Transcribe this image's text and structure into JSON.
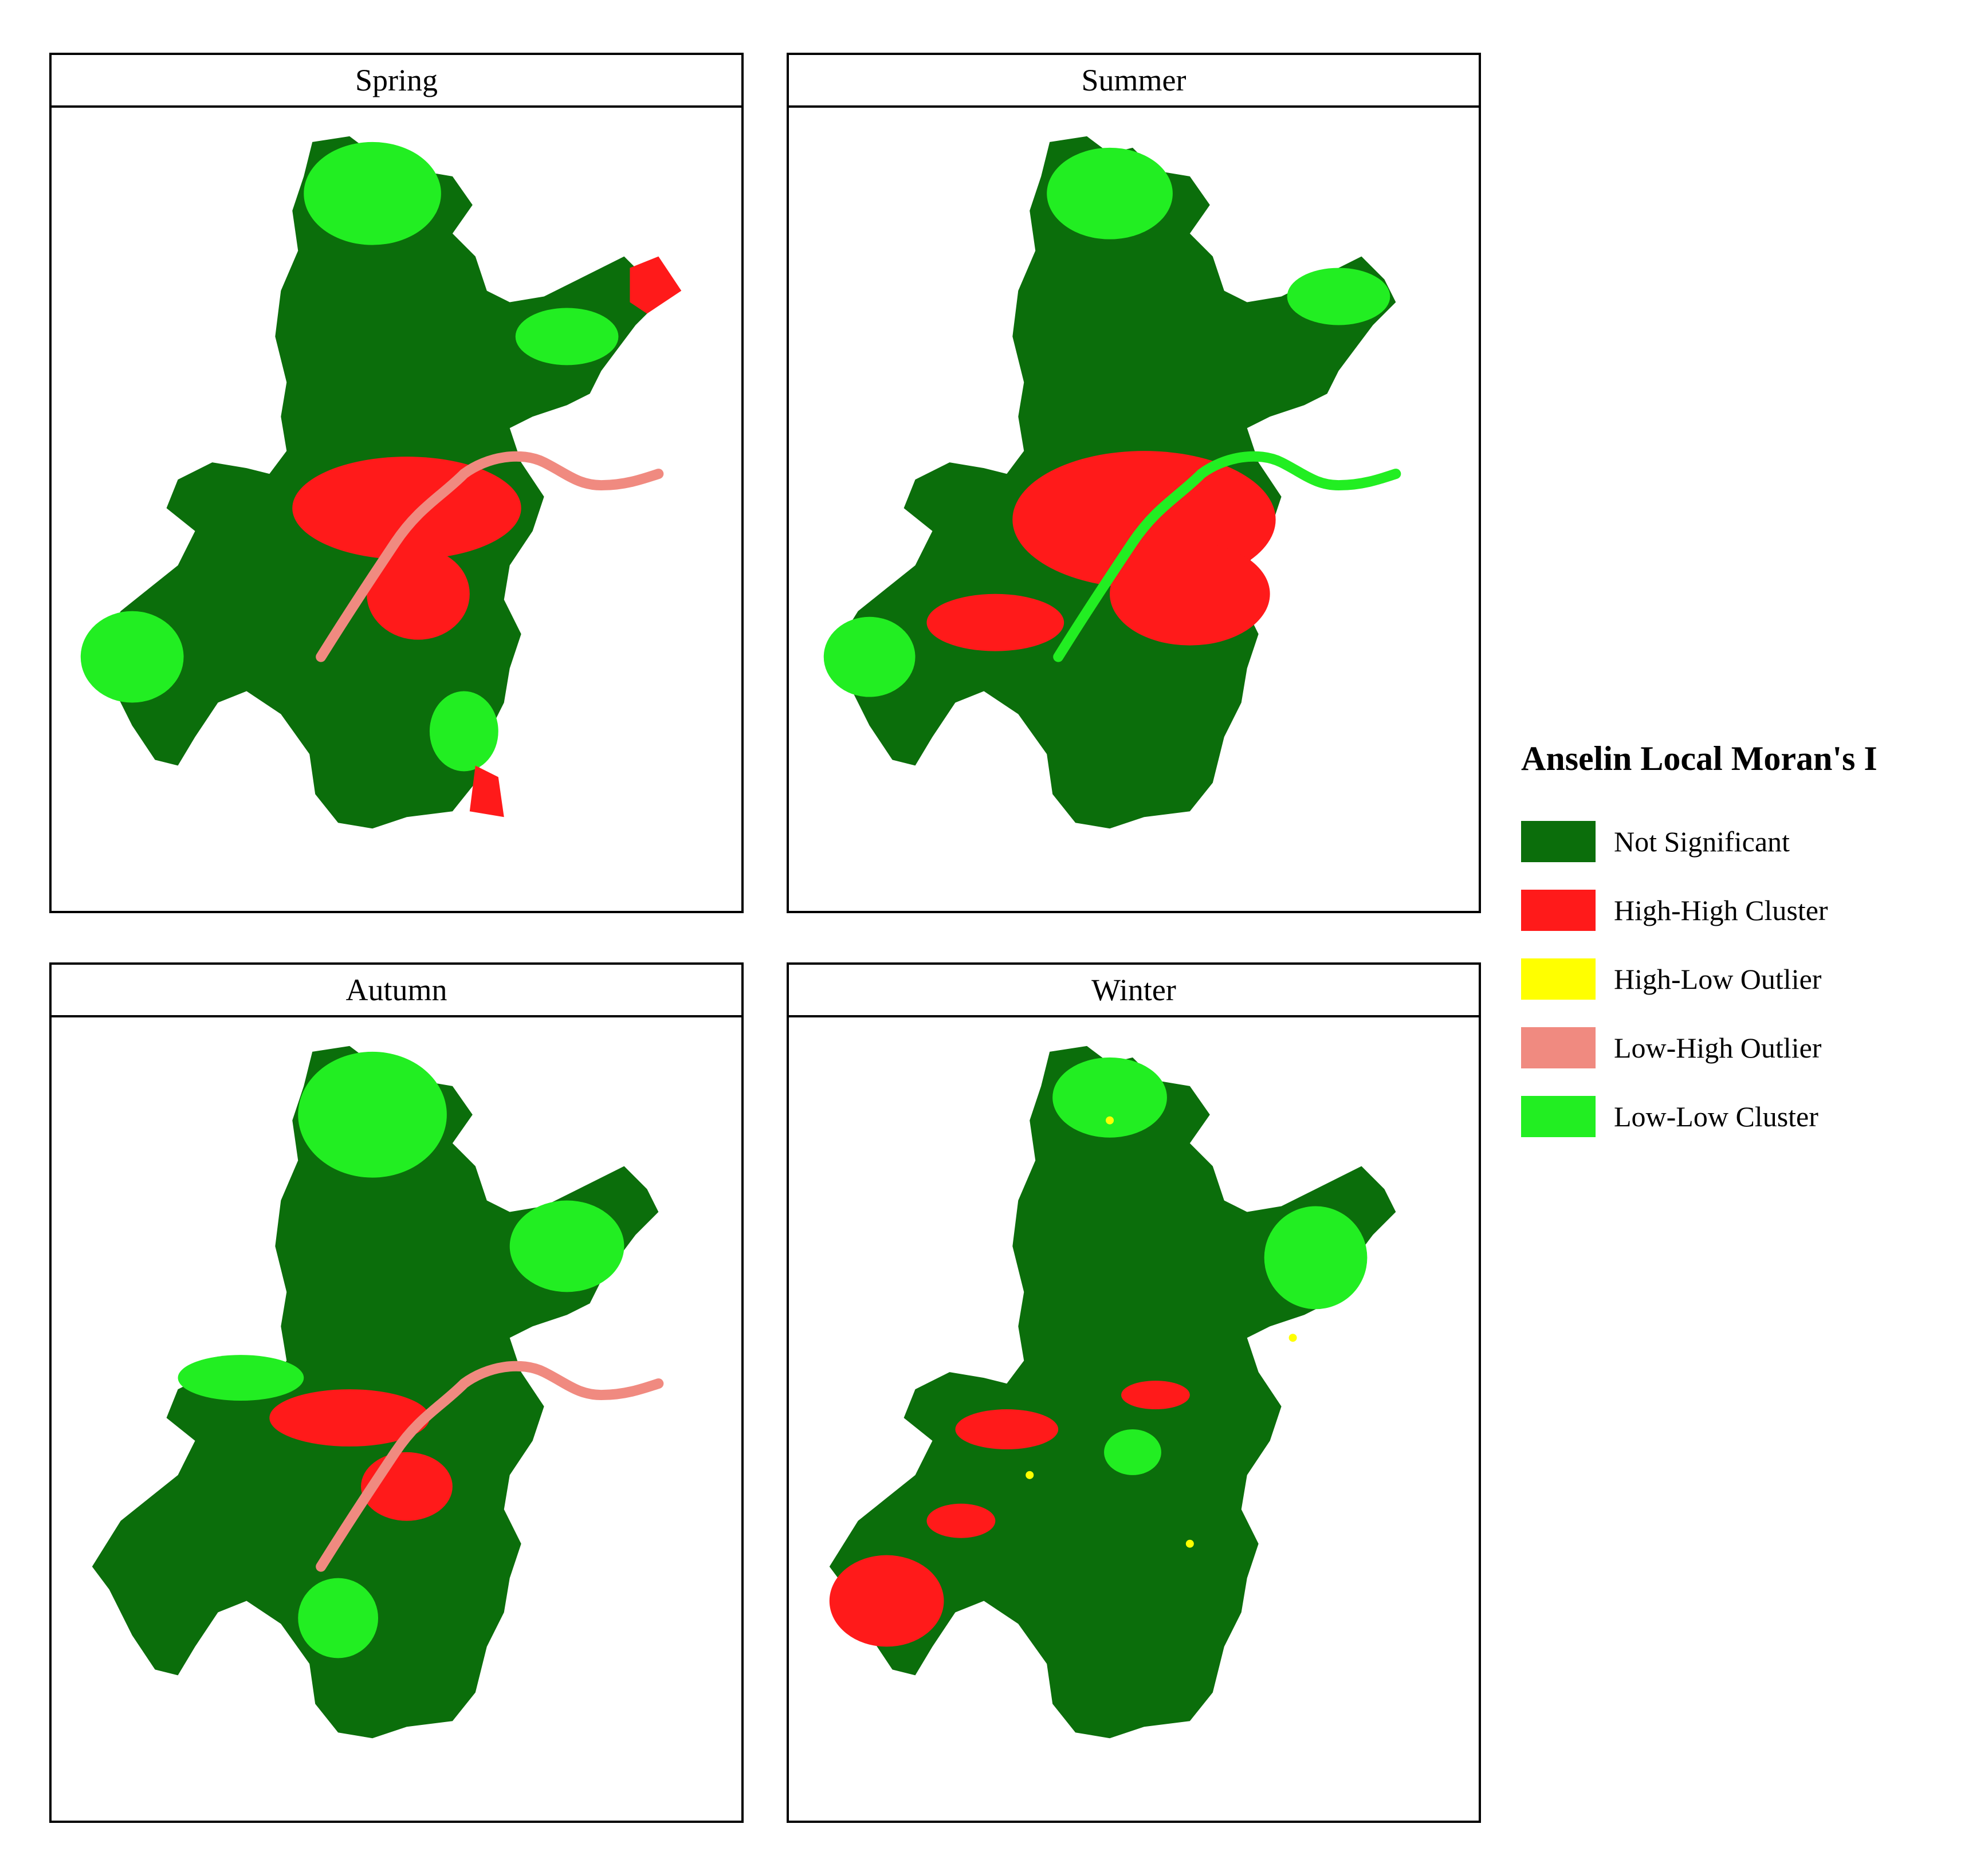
{
  "colors": {
    "not_significant": "#0b6e0b",
    "high_high": "#ff1a1a",
    "high_low": "#ffff00",
    "low_high": "#f08a80",
    "low_low": "#22ee22"
  },
  "panels": [
    {
      "id": "spring",
      "title": "Spring"
    },
    {
      "id": "summer",
      "title": "Summer"
    },
    {
      "id": "autumn",
      "title": "Autumn"
    },
    {
      "id": "winter",
      "title": "Winter"
    }
  ],
  "legend": {
    "title": "Anselin Local Moran's I",
    "items": [
      {
        "label": "Not Significant",
        "color": "#0b6e0b"
      },
      {
        "label": "High-High Cluster",
        "color": "#ff1a1a"
      },
      {
        "label": "High-Low Outlier",
        "color": "#ffff00"
      },
      {
        "label": "Low-High Outlier",
        "color": "#f08a80"
      },
      {
        "label": "Low-Low Cluster",
        "color": "#22ee22"
      }
    ]
  }
}
